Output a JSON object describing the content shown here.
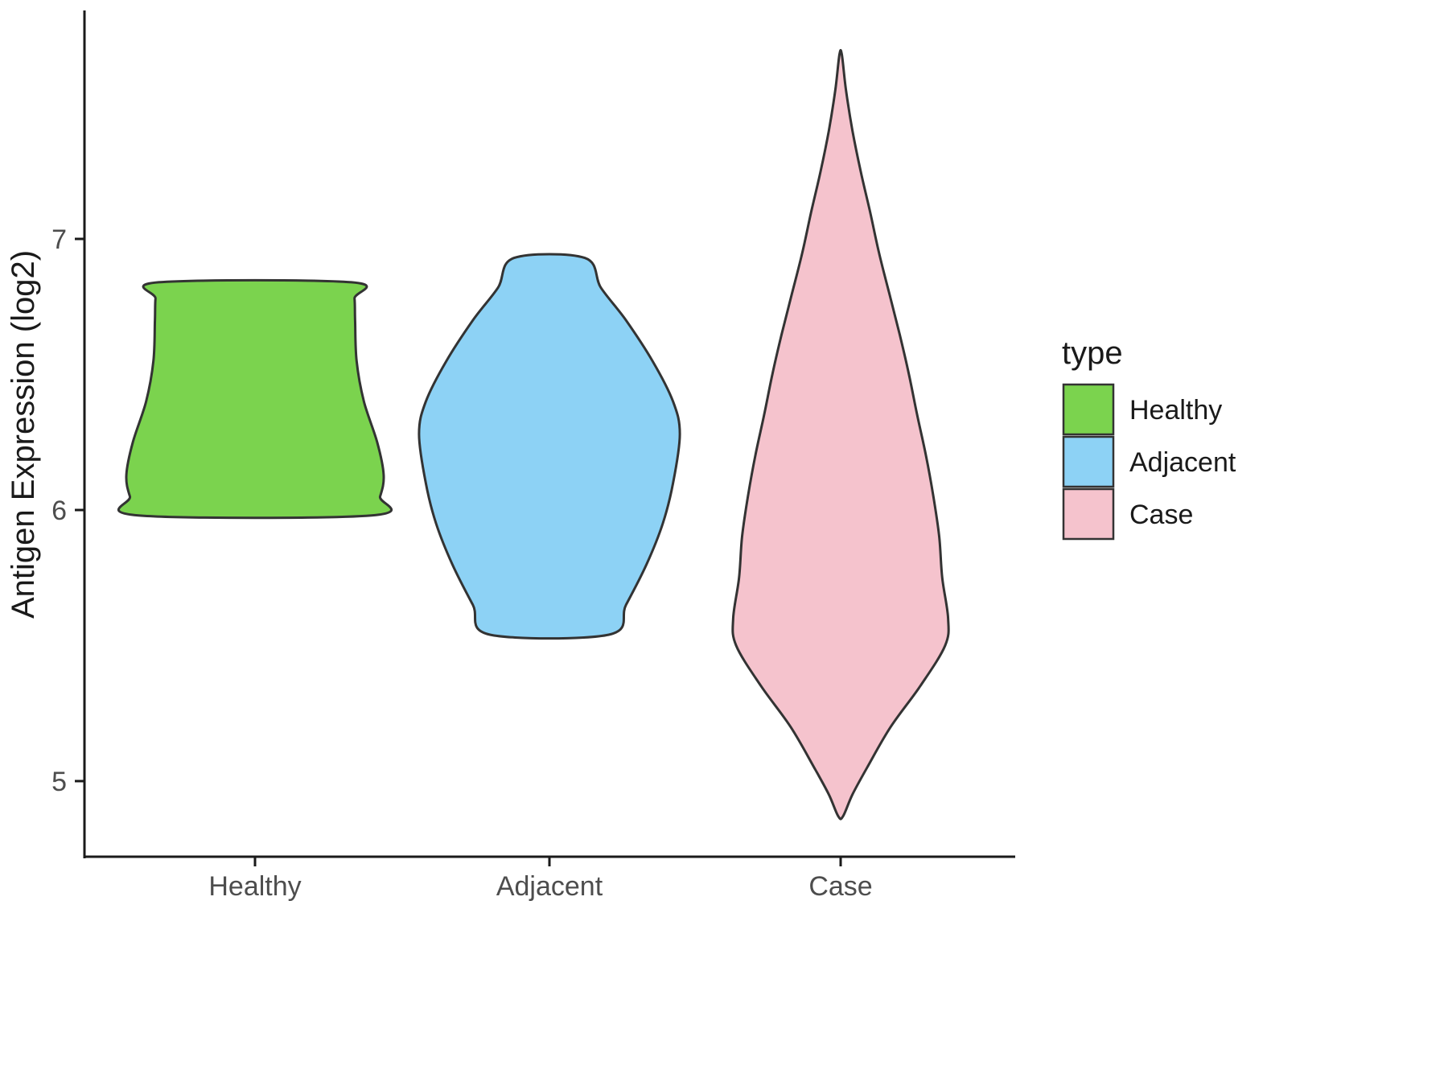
{
  "chart_data": {
    "type": "violin",
    "title": "",
    "xlabel": "",
    "ylabel": "Antigen Expression (log2)",
    "categories": [
      "Healthy",
      "Adjacent",
      "Case"
    ],
    "yticks": [
      5,
      6,
      7
    ],
    "ylim": [
      4.6,
      7.85
    ],
    "grid": false,
    "legend": {
      "title": "type",
      "position": "right",
      "entries": [
        {
          "label": "Healthy",
          "color": "#7BD34E"
        },
        {
          "label": "Adjacent",
          "color": "#8DD2F5"
        },
        {
          "label": "Case",
          "color": "#F5C3CD"
        }
      ]
    },
    "outline_color": "#333333",
    "axis_color": "#1A1A1A",
    "tick_label_color": "#4D4D4D",
    "series": [
      {
        "name": "Healthy",
        "color": "#7BD34E",
        "profile": [
          [
            5.98,
            0.396
          ],
          [
            6.05,
            0.425
          ],
          [
            6.13,
            0.437
          ],
          [
            6.25,
            0.415
          ],
          [
            6.4,
            0.37
          ],
          [
            6.55,
            0.345
          ],
          [
            6.7,
            0.34
          ],
          [
            6.78,
            0.338
          ],
          [
            6.84,
            0.328
          ]
        ]
      },
      {
        "name": "Adjacent",
        "color": "#8DD2F5",
        "profile": [
          [
            5.54,
            0.202
          ],
          [
            5.65,
            0.26
          ],
          [
            5.8,
            0.33
          ],
          [
            5.95,
            0.385
          ],
          [
            6.1,
            0.42
          ],
          [
            6.28,
            0.443
          ],
          [
            6.4,
            0.42
          ],
          [
            6.55,
            0.35
          ],
          [
            6.7,
            0.26
          ],
          [
            6.82,
            0.175
          ],
          [
            6.93,
            0.12
          ]
        ]
      },
      {
        "name": "Case",
        "color": "#F5C3CD",
        "profile": [
          [
            4.87,
            0.008
          ],
          [
            4.95,
            0.04
          ],
          [
            5.05,
            0.09
          ],
          [
            5.2,
            0.17
          ],
          [
            5.35,
            0.27
          ],
          [
            5.5,
            0.355
          ],
          [
            5.6,
            0.365
          ],
          [
            5.75,
            0.345
          ],
          [
            5.9,
            0.335
          ],
          [
            6.05,
            0.315
          ],
          [
            6.2,
            0.29
          ],
          [
            6.35,
            0.26
          ],
          [
            6.5,
            0.232
          ],
          [
            6.65,
            0.2
          ],
          [
            6.8,
            0.165
          ],
          [
            6.95,
            0.13
          ],
          [
            7.1,
            0.1
          ],
          [
            7.25,
            0.068
          ],
          [
            7.4,
            0.04
          ],
          [
            7.55,
            0.018
          ],
          [
            7.68,
            0.004
          ]
        ]
      }
    ]
  }
}
